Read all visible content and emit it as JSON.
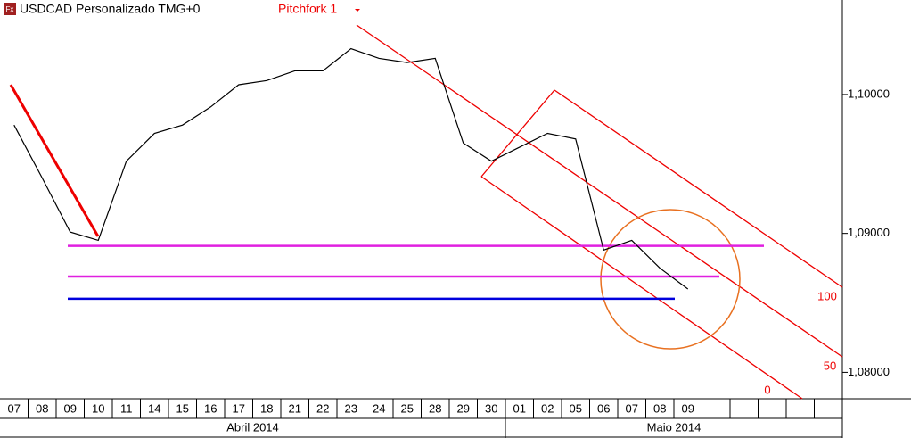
{
  "header": {
    "icon": "Fx",
    "symbol": "USDCAD Personalizado TMG+0",
    "tool": "Pitchfork 1"
  },
  "chart_data": {
    "type": "line",
    "categories": [
      "07",
      "08",
      "09",
      "10",
      "11",
      "14",
      "15",
      "16",
      "17",
      "18",
      "21",
      "22",
      "23",
      "24",
      "25",
      "28",
      "29",
      "30",
      "01",
      "02",
      "05",
      "06",
      "07",
      "08",
      "09",
      null,
      null,
      null,
      null,
      null
    ],
    "months": [
      {
        "label": "Abril 2014",
        "span": 18
      },
      {
        "label": "Maio 2014",
        "span": 12
      }
    ],
    "series": [
      {
        "name": "USDCAD",
        "color": "#000000",
        "values": [
          1.0978,
          1.094,
          1.0901,
          1.0895,
          1.0952,
          1.0972,
          1.0978,
          1.0991,
          1.1007,
          1.101,
          1.1017,
          1.1017,
          1.1033,
          1.1026,
          1.1023,
          1.1026,
          1.0965,
          1.0952,
          1.0962,
          1.0972,
          1.0968,
          1.0888,
          1.0895,
          1.0875,
          1.086,
          null,
          null,
          null,
          null,
          null
        ]
      }
    ],
    "levels": [
      {
        "value": 1.0891,
        "color": "#e020e0"
      },
      {
        "value": 1.0869,
        "color": "#e020e0"
      },
      {
        "value": 1.0853,
        "color": "#0000dd"
      }
    ],
    "pitchfork_labels": [
      "100",
      "50",
      "0"
    ],
    "ylim": [
      1.0781,
      1.1068
    ],
    "yticks": [
      {
        "value": 1.08,
        "label": "1,08000"
      },
      {
        "value": 1.09,
        "label": "1,09000"
      },
      {
        "value": 1.1,
        "label": "1,10000"
      }
    ]
  }
}
